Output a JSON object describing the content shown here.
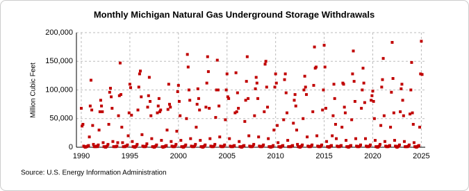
{
  "chart_data": {
    "type": "scatter",
    "title": "Monthly Michigan Natural  Gas Underground Storage Withdrawals",
    "y_label": "Million Cubic Feet",
    "source": "Source: U.S. Energy Information Administration",
    "color": "#c00000",
    "grid": true,
    "xlim": [
      1989.5,
      2025.4
    ],
    "xticks": [
      1990,
      1995,
      2000,
      2005,
      2010,
      2015,
      2020,
      2025
    ],
    "ylim": [
      0,
      200000
    ],
    "yticks": [
      0,
      {
        "value": 50000,
        "label": "50,000"
      },
      {
        "value": 100000,
        "label": "100,000"
      },
      {
        "value": 150000,
        "label": "150,000"
      },
      {
        "value": 200000,
        "label": "200,000"
      }
    ],
    "x": [
      1990,
      1990.08,
      1990.17,
      1990.25,
      1990.33,
      1990.42,
      1990.5,
      1990.58,
      1990.67,
      1990.75,
      1990.83,
      1990.92,
      1991,
      1991.08,
      1991.17,
      1991.25,
      1991.33,
      1991.42,
      1991.5,
      1991.58,
      1991.67,
      1991.75,
      1991.83,
      1991.92,
      1992,
      1992.08,
      1992.17,
      1992.25,
      1992.33,
      1992.42,
      1992.5,
      1992.58,
      1992.67,
      1992.75,
      1992.83,
      1992.92,
      1993,
      1993.08,
      1993.17,
      1993.25,
      1993.33,
      1993.42,
      1993.5,
      1993.58,
      1993.67,
      1993.75,
      1993.83,
      1993.92,
      1994,
      1994.08,
      1994.17,
      1994.25,
      1994.33,
      1994.42,
      1994.5,
      1994.58,
      1994.67,
      1994.75,
      1994.83,
      1994.92,
      1995,
      1995.08,
      1995.17,
      1995.25,
      1995.33,
      1995.42,
      1995.5,
      1995.58,
      1995.67,
      1995.75,
      1995.83,
      1995.92,
      1996,
      1996.08,
      1996.17,
      1996.25,
      1996.33,
      1996.42,
      1996.5,
      1996.58,
      1996.67,
      1996.75,
      1996.83,
      1996.92,
      1997,
      1997.08,
      1997.17,
      1997.25,
      1997.33,
      1997.42,
      1997.5,
      1997.58,
      1997.67,
      1997.75,
      1997.83,
      1997.92,
      1998,
      1998.08,
      1998.17,
      1998.25,
      1998.33,
      1998.42,
      1998.5,
      1998.58,
      1998.67,
      1998.75,
      1998.83,
      1998.92,
      1999,
      1999.08,
      1999.17,
      1999.25,
      1999.33,
      1999.42,
      1999.5,
      1999.58,
      1999.67,
      1999.75,
      1999.83,
      1999.92,
      2000,
      2000.08,
      2000.17,
      2000.25,
      2000.33,
      2000.42,
      2000.5,
      2000.58,
      2000.67,
      2000.75,
      2000.83,
      2000.92,
      2001,
      2001.08,
      2001.17,
      2001.25,
      2001.33,
      2001.42,
      2001.5,
      2001.58,
      2001.67,
      2001.75,
      2001.83,
      2001.92,
      2002,
      2002.08,
      2002.17,
      2002.25,
      2002.33,
      2002.42,
      2002.5,
      2002.58,
      2002.67,
      2002.75,
      2002.83,
      2002.92,
      2003,
      2003.08,
      2003.17,
      2003.25,
      2003.33,
      2003.42,
      2003.5,
      2003.58,
      2003.67,
      2003.75,
      2003.83,
      2003.92,
      2004,
      2004.08,
      2004.17,
      2004.25,
      2004.33,
      2004.42,
      2004.5,
      2004.58,
      2004.67,
      2004.75,
      2004.83,
      2004.92,
      2005,
      2005.08,
      2005.17,
      2005.25,
      2005.33,
      2005.42,
      2005.5,
      2005.58,
      2005.67,
      2005.75,
      2005.83,
      2005.92,
      2006,
      2006.08,
      2006.17,
      2006.25,
      2006.33,
      2006.42,
      2006.5,
      2006.58,
      2006.67,
      2006.75,
      2006.83,
      2006.92,
      2007,
      2007.08,
      2007.17,
      2007.25,
      2007.33,
      2007.42,
      2007.5,
      2007.58,
      2007.67,
      2007.75,
      2007.83,
      2007.92,
      2008,
      2008.08,
      2008.17,
      2008.25,
      2008.33,
      2008.42,
      2008.5,
      2008.58,
      2008.67,
      2008.75,
      2008.83,
      2008.92,
      2009,
      2009.08,
      2009.17,
      2009.25,
      2009.33,
      2009.42,
      2009.5,
      2009.58,
      2009.67,
      2009.75,
      2009.83,
      2009.92,
      2010,
      2010.08,
      2010.17,
      2010.25,
      2010.33,
      2010.42,
      2010.5,
      2010.58,
      2010.67,
      2010.75,
      2010.83,
      2010.92,
      2011,
      2011.08,
      2011.17,
      2011.25,
      2011.33,
      2011.42,
      2011.5,
      2011.58,
      2011.67,
      2011.75,
      2011.83,
      2011.92,
      2012,
      2012.08,
      2012.17,
      2012.25,
      2012.33,
      2012.42,
      2012.5,
      2012.58,
      2012.67,
      2012.75,
      2012.83,
      2012.92,
      2013,
      2013.08,
      2013.17,
      2013.25,
      2013.33,
      2013.42,
      2013.5,
      2013.58,
      2013.67,
      2013.75,
      2013.83,
      2013.92,
      2014,
      2014.08,
      2014.17,
      2014.25,
      2014.33,
      2014.42,
      2014.5,
      2014.58,
      2014.67,
      2014.75,
      2014.83,
      2014.92,
      2015,
      2015.08,
      2015.17,
      2015.25,
      2015.33,
      2015.42,
      2015.5,
      2015.58,
      2015.67,
      2015.75,
      2015.83,
      2015.92,
      2016,
      2016.08,
      2016.17,
      2016.25,
      2016.33,
      2016.42,
      2016.5,
      2016.58,
      2016.67,
      2016.75,
      2016.83,
      2016.92,
      2017,
      2017.08,
      2017.17,
      2017.25,
      2017.33,
      2017.42,
      2017.5,
      2017.58,
      2017.67,
      2017.75,
      2017.83,
      2017.92,
      2018,
      2018.08,
      2018.17,
      2018.25,
      2018.33,
      2018.42,
      2018.5,
      2018.58,
      2018.67,
      2018.75,
      2018.83,
      2018.92,
      2019,
      2019.08,
      2019.17,
      2019.25,
      2019.33,
      2019.42,
      2019.5,
      2019.58,
      2019.67,
      2019.75,
      2019.83,
      2019.92,
      2020,
      2020.08,
      2020.17,
      2020.25,
      2020.33,
      2020.42,
      2020.5,
      2020.58,
      2020.67,
      2020.75,
      2020.83,
      2020.92,
      2021,
      2021.08,
      2021.17,
      2021.25,
      2021.33,
      2021.42,
      2021.5,
      2021.58,
      2021.67,
      2021.75,
      2021.83,
      2021.92,
      2022,
      2022.08,
      2022.17,
      2022.25,
      2022.33,
      2022.42,
      2022.5,
      2022.58,
      2022.67,
      2022.75,
      2022.83,
      2022.92,
      2023,
      2023.08,
      2023.17,
      2023.25,
      2023.33,
      2023.42,
      2023.5,
      2023.58,
      2023.67,
      2023.75,
      2023.83,
      2023.92,
      2024,
      2024.08,
      2024.17,
      2024.25,
      2024.33,
      2024.42,
      2024.5,
      2024.58,
      2024.67,
      2024.75,
      2024.83,
      2024.92,
      2025,
      2025.08
    ],
    "values": [
      68000,
      37000,
      40000,
      2000,
      1000,
      0,
      1000,
      1000,
      2000,
      3000,
      18000,
      72000,
      117000,
      65000,
      38000,
      5000,
      1000,
      1000,
      1000,
      2000,
      1000,
      4000,
      30000,
      62000,
      82000,
      72000,
      62000,
      8000,
      1000,
      1000,
      0,
      1000,
      2000,
      5000,
      40000,
      96000,
      103000,
      88000,
      68000,
      10000,
      1000,
      1000,
      1000,
      1000,
      2000,
      8000,
      55000,
      90000,
      147000,
      92000,
      35000,
      8000,
      1000,
      1000,
      1000,
      2000,
      2000,
      4000,
      20000,
      60000,
      110000,
      104000,
      56000,
      10000,
      1000,
      1000,
      0,
      1000,
      2000,
      5000,
      65000,
      105000,
      128000,
      133000,
      88000,
      22000,
      2000,
      1000,
      1000,
      1000,
      2000,
      6000,
      70000,
      90000,
      122000,
      80000,
      55000,
      15000,
      1000,
      1000,
      0,
      1000,
      2000,
      4000,
      60000,
      72000,
      85000,
      62000,
      65000,
      12000,
      1000,
      0,
      1000,
      1000,
      2000,
      3000,
      30000,
      66000,
      110000,
      75000,
      70000,
      10000,
      2000,
      1000,
      1000,
      1000,
      2000,
      5000,
      28000,
      97000,
      108000,
      80000,
      55000,
      12000,
      1000,
      1000,
      0,
      1000,
      2000,
      4000,
      50000,
      162000,
      140000,
      100000,
      82000,
      15000,
      2000,
      1000,
      1000,
      1000,
      2000,
      5000,
      35000,
      75000,
      102000,
      85000,
      65000,
      12000,
      1000,
      1000,
      0,
      1000,
      2000,
      4000,
      70000,
      112000,
      158000,
      132000,
      68000,
      15000,
      2000,
      1000,
      1000,
      1000,
      2000,
      5000,
      52000,
      100000,
      152000,
      100000,
      72000,
      18000,
      2000,
      1000,
      1000,
      1000,
      2000,
      4000,
      48000,
      100000,
      128000,
      88000,
      85000,
      15000,
      2000,
      1000,
      1000,
      1000,
      2000,
      3000,
      60000,
      130000,
      62000,
      95000,
      68000,
      10000,
      1000,
      1000,
      0,
      1000,
      2000,
      3000,
      45000,
      82000,
      115000,
      158000,
      85000,
      20000,
      2000,
      1000,
      1000,
      1000,
      2000,
      5000,
      55000,
      102000,
      122000,
      112000,
      85000,
      18000,
      2000,
      1000,
      1000,
      1000,
      2000,
      4000,
      62000,
      145000,
      150000,
      105000,
      70000,
      15000,
      1000,
      1000,
      0,
      1000,
      1000,
      3000,
      30000,
      105000,
      128000,
      112000,
      38000,
      8000,
      1000,
      1000,
      0,
      1000,
      2000,
      3000,
      48000,
      118000,
      128000,
      95000,
      60000,
      12000,
      1000,
      1000,
      1000,
      1000,
      2000,
      3000,
      42000,
      82000,
      92000,
      72000,
      30000,
      5000,
      1000,
      1000,
      0,
      1000,
      2000,
      4000,
      50000,
      100000,
      124000,
      105000,
      92000,
      18000,
      2000,
      1000,
      1000,
      1000,
      2000,
      4000,
      62000,
      108000,
      175000,
      138000,
      140000,
      20000,
      2000,
      1000,
      1000,
      1000,
      2000,
      4000,
      65000,
      100000,
      178000,
      140000,
      68000,
      10000,
      1000,
      1000,
      0,
      1000,
      2000,
      3000,
      20000,
      55000,
      110000,
      85000,
      40000,
      15000,
      2000,
      1000,
      1000,
      1000,
      2000,
      3000,
      35000,
      112000,
      110000,
      70000,
      60000,
      12000,
      1000,
      1000,
      0,
      1000,
      2000,
      3000,
      48000,
      128000,
      168000,
      115000,
      80000,
      15000,
      2000,
      1000,
      1000,
      1000,
      2000,
      4000,
      68000,
      100000,
      138000,
      112000,
      78000,
      15000,
      2000,
      1000,
      1000,
      1000,
      2000,
      4000,
      82000,
      90000,
      98000,
      80000,
      50000,
      12000,
      1000,
      1000,
      0,
      1000,
      2000,
      5000,
      38000,
      105000,
      118000,
      155000,
      55000,
      10000,
      2000,
      1000,
      1000,
      1000,
      2000,
      3000,
      35000,
      96000,
      183000,
      120000,
      60000,
      12000,
      2000,
      1000,
      0,
      1000,
      2000,
      4000,
      62000,
      102000,
      110000,
      82000,
      55000,
      10000,
      1000,
      1000,
      1000,
      1000,
      2000,
      4000,
      58000,
      100000,
      148000,
      60000,
      40000,
      8000,
      1000,
      1000,
      0,
      1000,
      2000,
      3000,
      35000,
      128000,
      185000,
      127000
    ]
  }
}
